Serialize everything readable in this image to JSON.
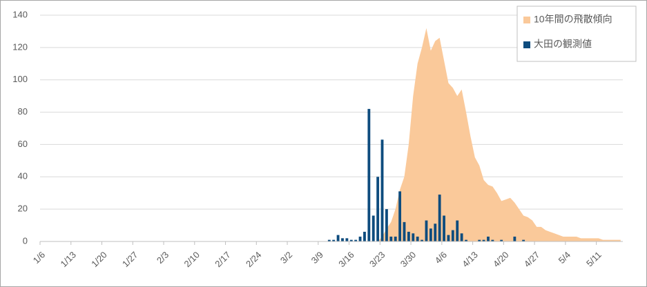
{
  "chart_data": {
    "type": "bar-area",
    "categories": [
      "1/6",
      null,
      null,
      null,
      null,
      null,
      null,
      "1/13",
      null,
      null,
      null,
      null,
      null,
      null,
      "1/20",
      null,
      null,
      null,
      null,
      null,
      null,
      "1/27",
      null,
      null,
      null,
      null,
      null,
      null,
      "2/3",
      null,
      null,
      null,
      null,
      null,
      null,
      "2/10",
      null,
      null,
      null,
      null,
      null,
      null,
      "2/17",
      null,
      null,
      null,
      null,
      null,
      null,
      "2/24",
      null,
      null,
      null,
      null,
      null,
      null,
      "3/2",
      null,
      null,
      null,
      null,
      null,
      null,
      "3/9",
      null,
      null,
      null,
      null,
      null,
      null,
      "3/16",
      null,
      null,
      null,
      null,
      null,
      null,
      "3/23",
      null,
      null,
      null,
      null,
      null,
      null,
      "3/30",
      null,
      null,
      null,
      null,
      null,
      null,
      "4/6",
      null,
      null,
      null,
      null,
      null,
      null,
      "4/13",
      null,
      null,
      null,
      null,
      null,
      null,
      "4/20",
      null,
      null,
      null,
      null,
      null,
      null,
      "4/27",
      null,
      null,
      null,
      null,
      null,
      null,
      "5/4",
      null,
      null,
      null,
      null,
      null,
      null,
      "5/11",
      null,
      null,
      null,
      null,
      null
    ],
    "series": [
      {
        "name": "10年間の飛散傾向",
        "kind": "area",
        "color": "#fac99a",
        "values": [
          0,
          0,
          0,
          0,
          0,
          0,
          0,
          0,
          0,
          0,
          0,
          0,
          0,
          0,
          0,
          0,
          0,
          0,
          0,
          0,
          0,
          0,
          0,
          0,
          0,
          0,
          0,
          0,
          0,
          0,
          0,
          0,
          0,
          0,
          0,
          0,
          0,
          0,
          0,
          0,
          0,
          0,
          0,
          0,
          0,
          0,
          0,
          0,
          0,
          0,
          0,
          0,
          0,
          0,
          0,
          0,
          0,
          0,
          0,
          0,
          0,
          0,
          0,
          0,
          0,
          0,
          0,
          0,
          0,
          0,
          0,
          0,
          0,
          0,
          0,
          0,
          0,
          3,
          8,
          12,
          20,
          32,
          40,
          60,
          90,
          110,
          120,
          132,
          118,
          124,
          126,
          112,
          98,
          95,
          90,
          94,
          80,
          65,
          52,
          47,
          38,
          35,
          34,
          30,
          25,
          26,
          27,
          24,
          20,
          16,
          15,
          13,
          9,
          9,
          7,
          6,
          5,
          4,
          3,
          3,
          3,
          3,
          2,
          2,
          2,
          2,
          2,
          1,
          1,
          1,
          1,
          1
        ]
      },
      {
        "name": "大田の観測値",
        "kind": "bar",
        "color": "#0e4c7e",
        "values": [
          0,
          0,
          0,
          0,
          0,
          0,
          0,
          0,
          0,
          0,
          0,
          0,
          0,
          0,
          0,
          0,
          0,
          0,
          0,
          0,
          0,
          0,
          0,
          0,
          0,
          0,
          0,
          0,
          0,
          0,
          0,
          0,
          0,
          0,
          0,
          0,
          0,
          0,
          0,
          0,
          0,
          0,
          0,
          0,
          0,
          0,
          0,
          0,
          0,
          0,
          0,
          0,
          0,
          0,
          0,
          0,
          0,
          0,
          0,
          0,
          0,
          0,
          0,
          0,
          0,
          1,
          1,
          4,
          2,
          2,
          1,
          1,
          3,
          6,
          82,
          16,
          40,
          63,
          20,
          3,
          3,
          31,
          12,
          6,
          5,
          3,
          1,
          13,
          8,
          11,
          29,
          16,
          4,
          7,
          13,
          5,
          1,
          0,
          0,
          1,
          1,
          3,
          1,
          0,
          1,
          0,
          0,
          3,
          0,
          1,
          0,
          0,
          0,
          0,
          0,
          0,
          0,
          0,
          0,
          0,
          0,
          0,
          0,
          0,
          0,
          0,
          0,
          0,
          0,
          0,
          0,
          0
        ]
      }
    ],
    "ylim": [
      0,
      140
    ],
    "yticks": [
      0,
      20,
      40,
      60,
      80,
      100,
      120,
      140
    ],
    "grid": true,
    "legend": "top-right"
  }
}
